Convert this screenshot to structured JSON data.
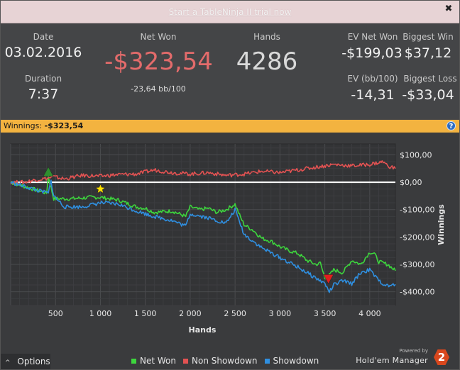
{
  "banner": {
    "link_text": "Start a TableNinja II trial now",
    "close_icon": "✖"
  },
  "stats": {
    "date_label": "Date",
    "date_value": "03.02.2016",
    "duration_label": "Duration",
    "duration_value": "7:37",
    "net_won_label": "Net Won",
    "net_won_value": "-$323,54",
    "net_won_bb": "-23,64 bb/100",
    "hands_label": "Hands",
    "hands_value": "4286",
    "ev_net_won_label": "EV Net Won",
    "ev_net_won_value": "-$199,03",
    "biggest_win_label": "Biggest Win",
    "biggest_win_value": "$37,12",
    "ev_bb_label": "EV (bb/100)",
    "ev_bb_value": "-14,31",
    "biggest_loss_label": "Biggest Loss",
    "biggest_loss_value": "-$33,04"
  },
  "winbar": {
    "label": "Winnings:",
    "value": "-$323,54",
    "help_icon": "?"
  },
  "chart_data": {
    "type": "line",
    "xlabel": "Hands",
    "ylabel": "Winnings",
    "xlim": [
      0,
      4286
    ],
    "ylim": [
      -450,
      140
    ],
    "x_ticks": [
      500,
      1000,
      1500,
      2000,
      2500,
      3000,
      3500,
      4000
    ],
    "x_tick_labels": [
      "500",
      "1 000",
      "1 500",
      "2 000",
      "2 500",
      "3 000",
      "3 500",
      "4 000"
    ],
    "y_ticks": [
      100,
      0,
      -100,
      -200,
      -300,
      -400
    ],
    "y_tick_labels": [
      "$100,00",
      "$0,00",
      "-$100,00",
      "-$200,00",
      "-$300,00",
      "-$400,00"
    ],
    "grid": true,
    "series": [
      {
        "name": "Net Won",
        "color": "#3dd63d",
        "x": [
          0,
          150,
          300,
          400,
          420,
          450,
          480,
          700,
          900,
          1000,
          1200,
          1400,
          1500,
          1600,
          1800,
          1950,
          2000,
          2100,
          2200,
          2300,
          2400,
          2500,
          2550,
          2600,
          2700,
          2800,
          2900,
          3000,
          3100,
          3200,
          3300,
          3400,
          3450,
          3500,
          3550,
          3600,
          3700,
          3800,
          3900,
          4000,
          4050,
          4100,
          4200,
          4286
        ],
        "y": [
          0,
          -15,
          -30,
          -40,
          20,
          -20,
          -60,
          -60,
          -55,
          -55,
          -65,
          -90,
          -95,
          -110,
          -105,
          -125,
          -90,
          -100,
          -95,
          -110,
          -100,
          -80,
          -120,
          -155,
          -175,
          -205,
          -215,
          -235,
          -250,
          -260,
          -285,
          -300,
          -295,
          -350,
          -340,
          -320,
          -330,
          -285,
          -300,
          -255,
          -260,
          -290,
          -300,
          -323
        ]
      },
      {
        "name": "Non Showdown",
        "color": "#e25252",
        "x": [
          0,
          150,
          300,
          420,
          480,
          600,
          800,
          1000,
          1200,
          1400,
          1600,
          1800,
          2000,
          2200,
          2400,
          2600,
          2800,
          3000,
          3200,
          3400,
          3600,
          3800,
          4000,
          4150,
          4200,
          4286
        ],
        "y": [
          0,
          0,
          10,
          15,
          20,
          12,
          25,
          22,
          28,
          30,
          45,
          35,
          30,
          35,
          25,
          30,
          40,
          35,
          45,
          55,
          65,
          60,
          65,
          75,
          60,
          50
        ]
      },
      {
        "name": "Showdown",
        "color": "#2f8fe0",
        "x": [
          0,
          150,
          300,
          420,
          450,
          480,
          600,
          800,
          1000,
          1200,
          1400,
          1600,
          1800,
          1950,
          2000,
          2200,
          2400,
          2500,
          2600,
          2800,
          3000,
          3200,
          3300,
          3400,
          3500,
          3550,
          3600,
          3700,
          3800,
          3900,
          4000,
          4100,
          4200,
          4286
        ],
        "y": [
          0,
          -15,
          -30,
          -40,
          5,
          -50,
          -90,
          -90,
          -75,
          -80,
          -105,
          -125,
          -140,
          -160,
          -115,
          -130,
          -150,
          -100,
          -190,
          -240,
          -275,
          -310,
          -330,
          -350,
          -370,
          -400,
          -375,
          -360,
          -370,
          -330,
          -320,
          -360,
          -380,
          -373
        ]
      }
    ],
    "markers": [
      {
        "name": "Biggest Win",
        "x": 420,
        "y": 35,
        "shape": "up-triangle",
        "color": "#2f8f2f"
      },
      {
        "name": "Biggest Loss",
        "x": 3540,
        "y": -350,
        "shape": "down-triangle",
        "color": "#e01e1e"
      },
      {
        "name": "Star",
        "x": 1000,
        "y": -25,
        "shape": "star",
        "color": "#ffe000"
      }
    ],
    "zero_line": {
      "y": 0,
      "color": "#ffffff"
    }
  },
  "bottom": {
    "options_label": "Options",
    "options_icon": "^",
    "legend": [
      {
        "label": "Net Won",
        "color": "#3dd63d"
      },
      {
        "label": "Non Showdown",
        "color": "#e25252"
      },
      {
        "label": "Showdown",
        "color": "#2f8fe0"
      }
    ],
    "powered_by": "Powered by",
    "brand_name": "Hold'em Manager",
    "brand_logo": "2"
  }
}
